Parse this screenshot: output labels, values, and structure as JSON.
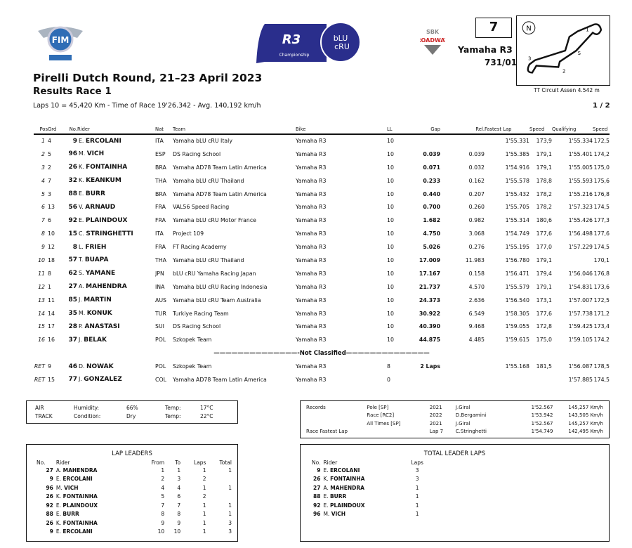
{
  "logos": {
    "fim": "FIM EUROPE",
    "r3": "R3 bLU cRU Championship",
    "sbk": "SBK ROADWAY"
  },
  "header": {
    "title": "Pirelli Dutch Round, 21–23 April 2023",
    "subtitle": "Results Race 1",
    "info": "Laps 10 = 45,420 Km  -  Time of Race 19'26.342  -  Avg. 140,192 km/h",
    "race_number": "7",
    "bike": "Yamaha R3",
    "homologation": "731/01",
    "circuit": "TT Circuit Assen 4.542 m",
    "page": "1 / 2"
  },
  "columns": [
    "Pos",
    "Grd",
    "No.",
    "Rider",
    "Nat",
    "Team",
    "Bike",
    "LL",
    "Gap",
    "Rel.",
    "Fastest Lap",
    "Speed",
    "Qualifying",
    "Speed"
  ],
  "results": [
    {
      "pos": "1",
      "grd": "4",
      "no": "9",
      "init": "E.",
      "name": "ERCOLANI",
      "nat": "ITA",
      "team": "Yamaha bLU cRU Italy",
      "bike": "Yamaha R3",
      "ll": "10",
      "gap": "",
      "rel": "",
      "fl": "1'55.331",
      "fls": "173,9",
      "q": "1'55.334",
      "qs": "172,5"
    },
    {
      "pos": "2",
      "grd": "5",
      "no": "96",
      "init": "M.",
      "name": "VICH",
      "nat": "ESP",
      "team": "DS Racing School",
      "bike": "Yamaha R3",
      "ll": "10",
      "gap": "0.039",
      "rel": "0.039",
      "fl": "1'55.385",
      "fls": "179,1",
      "q": "1'55.401",
      "qs": "174,2"
    },
    {
      "pos": "3",
      "grd": "2",
      "no": "26",
      "init": "K.",
      "name": "FONTAINHA",
      "nat": "BRA",
      "team": "Yamaha AD78 Team Latin America",
      "bike": "Yamaha R3",
      "ll": "10",
      "gap": "0.071",
      "rel": "0.032",
      "fl": "1'54.916",
      "fls": "179,1",
      "q": "1'55.005",
      "qs": "175,0"
    },
    {
      "pos": "4",
      "grd": "7",
      "no": "32",
      "init": "K.",
      "name": "KEANKUM",
      "nat": "THA",
      "team": "Yamaha bLU cRU Thailand",
      "bike": "Yamaha R3",
      "ll": "10",
      "gap": "0.233",
      "rel": "0.162",
      "fl": "1'55.578",
      "fls": "178,8",
      "q": "1'55.593",
      "qs": "175,6"
    },
    {
      "pos": "5",
      "grd": "3",
      "no": "88",
      "init": "E.",
      "name": "BURR",
      "nat": "BRA",
      "team": "Yamaha AD78 Team Latin America",
      "bike": "Yamaha R3",
      "ll": "10",
      "gap": "0.440",
      "rel": "0.207",
      "fl": "1'55.432",
      "fls": "178,2",
      "q": "1'55.216",
      "qs": "176,8"
    },
    {
      "pos": "6",
      "grd": "13",
      "no": "56",
      "init": "V.",
      "name": "ARNAUD",
      "nat": "FRA",
      "team": "VAL56 Speed Racing",
      "bike": "Yamaha R3",
      "ll": "10",
      "gap": "0.700",
      "rel": "0.260",
      "fl": "1'55.705",
      "fls": "178,2",
      "q": "1'57.323",
      "qs": "174,5"
    },
    {
      "pos": "7",
      "grd": "6",
      "no": "92",
      "init": "E.",
      "name": "PLAINDOUX",
      "nat": "FRA",
      "team": "Yamaha bLU cRU Motor France",
      "bike": "Yamaha R3",
      "ll": "10",
      "gap": "1.682",
      "rel": "0.982",
      "fl": "1'55.314",
      "fls": "180,6",
      "q": "1'55.426",
      "qs": "177,3"
    },
    {
      "pos": "8",
      "grd": "10",
      "no": "15",
      "init": "C.",
      "name": "STRINGHETTI",
      "nat": "ITA",
      "team": "Project 109",
      "bike": "Yamaha R3",
      "ll": "10",
      "gap": "4.750",
      "rel": "3.068",
      "fl": "1'54.749",
      "fls": "177,6",
      "q": "1'56.498",
      "qs": "177,6"
    },
    {
      "pos": "9",
      "grd": "12",
      "no": "8",
      "init": "L.",
      "name": "FRIEH",
      "nat": "FRA",
      "team": "FT Racing Academy",
      "bike": "Yamaha R3",
      "ll": "10",
      "gap": "5.026",
      "rel": "0.276",
      "fl": "1'55.195",
      "fls": "177,0",
      "q": "1'57.229",
      "qs": "174,5"
    },
    {
      "pos": "10",
      "grd": "18",
      "no": "57",
      "init": "T.",
      "name": "BUAPA",
      "nat": "THA",
      "team": "Yamaha bLU cRU Thailand",
      "bike": "Yamaha R3",
      "ll": "10",
      "gap": "17.009",
      "rel": "11.983",
      "fl": "1'56.780",
      "fls": "179,1",
      "q": "",
      "qs": "170,1"
    },
    {
      "pos": "11",
      "grd": "8",
      "no": "62",
      "init": "S.",
      "name": "YAMANE",
      "nat": "JPN",
      "team": "bLU cRU Yamaha Racing Japan",
      "bike": "Yamaha R3",
      "ll": "10",
      "gap": "17.167",
      "rel": "0.158",
      "fl": "1'56.471",
      "fls": "179,4",
      "q": "1'56.046",
      "qs": "176,8"
    },
    {
      "pos": "12",
      "grd": "1",
      "no": "27",
      "init": "A.",
      "name": "MAHENDRA",
      "nat": "INA",
      "team": "Yamaha bLU cRU Racing Indonesia",
      "bike": "Yamaha R3",
      "ll": "10",
      "gap": "21.737",
      "rel": "4.570",
      "fl": "1'55.579",
      "fls": "179,1",
      "q": "1'54.831",
      "qs": "173,6"
    },
    {
      "pos": "13",
      "grd": "11",
      "no": "85",
      "init": "J.",
      "name": "MARTIN",
      "nat": "AUS",
      "team": "Yamaha bLU cRU Team Australia",
      "bike": "Yamaha R3",
      "ll": "10",
      "gap": "24.373",
      "rel": "2.636",
      "fl": "1'56.540",
      "fls": "173,1",
      "q": "1'57.007",
      "qs": "172,5"
    },
    {
      "pos": "14",
      "grd": "14",
      "no": "35",
      "init": "M.",
      "name": "KONUK",
      "nat": "TUR",
      "team": "Turkiye Racing Team",
      "bike": "Yamaha R3",
      "ll": "10",
      "gap": "30.922",
      "rel": "6.549",
      "fl": "1'58.305",
      "fls": "177,6",
      "q": "1'57.738",
      "qs": "171,2"
    },
    {
      "pos": "15",
      "grd": "17",
      "no": "28",
      "init": "P.",
      "name": "ANASTASI",
      "nat": "SUI",
      "team": "DS Racing School",
      "bike": "Yamaha R3",
      "ll": "10",
      "gap": "40.390",
      "rel": "9.468",
      "fl": "1'59.055",
      "fls": "172,8",
      "q": "1'59.425",
      "qs": "173,4"
    },
    {
      "pos": "16",
      "grd": "16",
      "no": "37",
      "init": "J.",
      "name": "BELAK",
      "nat": "POL",
      "team": "Szkopek Team",
      "bike": "Yamaha R3",
      "ll": "10",
      "gap": "44.875",
      "rel": "4.485",
      "fl": "1'59.615",
      "fls": "175,0",
      "q": "1'59.105",
      "qs": "174,2"
    }
  ],
  "not_classified_label": "——————————————-Not Classified——————————————",
  "not_classified": [
    {
      "pos": "RET",
      "grd": "9",
      "no": "46",
      "init": "D.",
      "name": "NOWAK",
      "nat": "POL",
      "team": "Szkopek Team",
      "bike": "Yamaha R3",
      "ll": "8",
      "gap": "2 Laps",
      "rel": "",
      "fl": "1'55.168",
      "fls": "181,5",
      "q": "1'56.087",
      "qs": "178,5"
    },
    {
      "pos": "RET",
      "grd": "15",
      "no": "77",
      "init": "J.",
      "name": "GONZALEZ",
      "nat": "COL",
      "team": "Yamaha AD78 Team Latin America",
      "bike": "Yamaha R3",
      "ll": "0",
      "gap": "",
      "rel": "",
      "fl": "",
      "fls": "",
      "q": "1'57.885",
      "qs": "174,5"
    }
  ],
  "weather": [
    [
      "AIR",
      "Humidity:",
      "66%",
      "Temp:",
      "17°C"
    ],
    [
      "TRACK",
      "Condition:",
      "Dry",
      "Temp:",
      "22°C"
    ]
  ],
  "records": [
    [
      "Records",
      "Pole [SP]",
      "2021",
      "J.Giral",
      "1'52.567",
      "145,257 Km/h"
    ],
    [
      "",
      "Race [RC2]",
      "2022",
      "D.Bergamini",
      "1'53.942",
      "143,505 Km/h"
    ],
    [
      "",
      "All Times [SP]",
      "2021",
      "J.Giral",
      "1'52.567",
      "145,257 Km/h"
    ],
    [
      "Race Fastest Lap",
      "",
      "Lap 7",
      "C.Stringhetti",
      "1'54.749",
      "142,495 Km/h"
    ]
  ],
  "lap_leaders": {
    "title": "LAP LEADERS",
    "columns": [
      "No.",
      "Rider",
      "From",
      "To",
      "Laps",
      "Total"
    ],
    "rows": [
      [
        "27",
        "A.",
        "MAHENDRA",
        "1",
        "1",
        "1",
        "1"
      ],
      [
        "9",
        "E.",
        "ERCOLANI",
        "2",
        "3",
        "2",
        ""
      ],
      [
        "96",
        "M.",
        "VICH",
        "4",
        "4",
        "1",
        "1"
      ],
      [
        "26",
        "K.",
        "FONTAINHA",
        "5",
        "6",
        "2",
        ""
      ],
      [
        "92",
        "E.",
        "PLAINDOUX",
        "7",
        "7",
        "1",
        "1"
      ],
      [
        "88",
        "E.",
        "BURR",
        "8",
        "8",
        "1",
        "1"
      ],
      [
        "26",
        "K.",
        "FONTAINHA",
        "9",
        "9",
        "1",
        "3"
      ],
      [
        "9",
        "E.",
        "ERCOLANI",
        "10",
        "10",
        "1",
        "3"
      ]
    ]
  },
  "total_leader_laps": {
    "title": "TOTAL LEADER LAPS",
    "columns": [
      "No.",
      "Rider",
      "Laps"
    ],
    "rows": [
      [
        "9",
        "E.",
        "ERCOLANI",
        "3"
      ],
      [
        "26",
        "K.",
        "FONTAINHA",
        "3"
      ],
      [
        "27",
        "A.",
        "MAHENDRA",
        "1"
      ],
      [
        "88",
        "E.",
        "BURR",
        "1"
      ],
      [
        "92",
        "E.",
        "PLAINDOUX",
        "1"
      ],
      [
        "96",
        "M.",
        "VICH",
        "1"
      ]
    ]
  }
}
